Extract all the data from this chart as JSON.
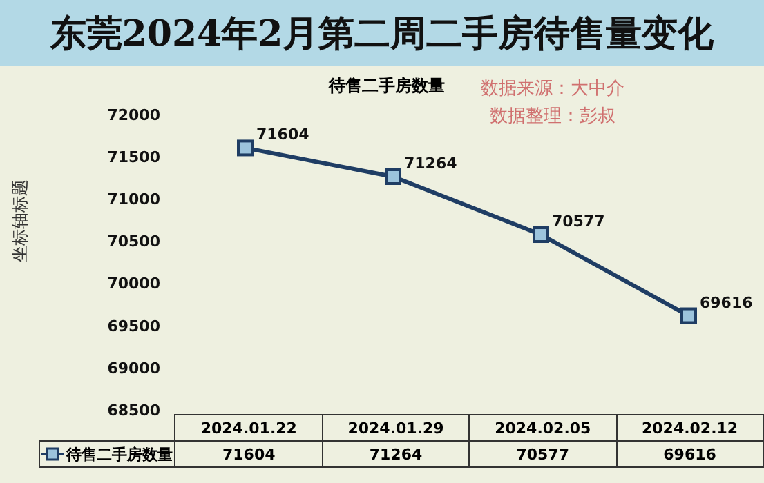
{
  "chart_data": {
    "type": "line",
    "title": "东莞2024年2月第二周二手房待售量变化",
    "subtitle": "待售二手房数量",
    "ylabel": "坐标轴标题",
    "annotations": [
      "数据来源：大中介",
      "数据整理：彭叔"
    ],
    "categories": [
      "2024.01.22",
      "2024.01.29",
      "2024.02.05",
      "2024.02.12"
    ],
    "series": [
      {
        "name": "待售二手房数量",
        "color": "#1f3d64",
        "values": [
          71604,
          71264,
          70577,
          69616
        ],
        "value_labels": [
          "71604",
          "71264",
          "70577",
          "69616"
        ]
      }
    ],
    "ylim": [
      68500,
      72000
    ],
    "yticks": [
      68500,
      69000,
      69500,
      70000,
      70500,
      71000,
      71500,
      72000
    ],
    "legend": "bottom",
    "marker": "square",
    "line_style": "solid"
  }
}
